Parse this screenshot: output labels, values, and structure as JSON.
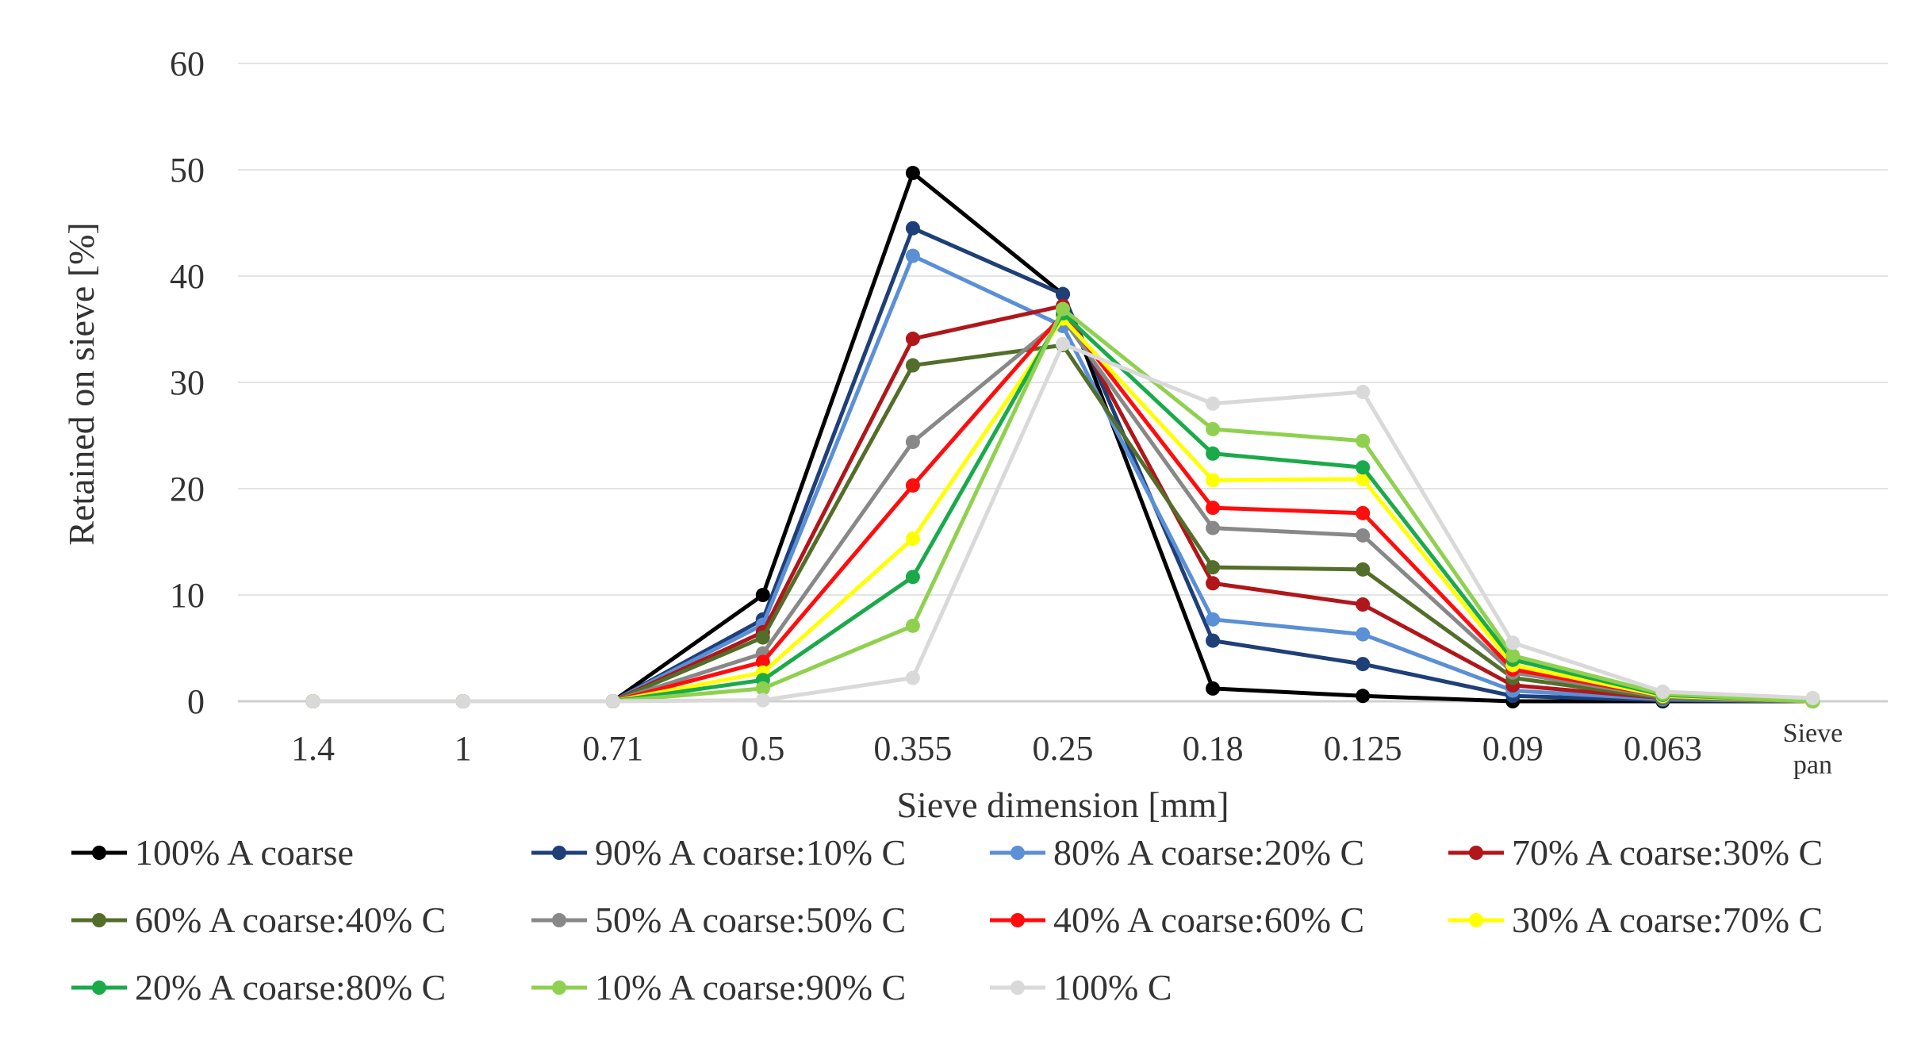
{
  "chart_data": {
    "type": "line",
    "title": "",
    "xlabel": "Sieve dimension [mm]",
    "ylabel": "Retained on sieve [%]",
    "ylim": [
      0,
      60
    ],
    "yticks": [
      0,
      10,
      20,
      30,
      40,
      50,
      60
    ],
    "grid": "horizontal",
    "legend_position": "bottom",
    "categories": [
      "1.4",
      "1",
      "0.71",
      "0.5",
      "0.355",
      "0.25",
      "0.18",
      "0.125",
      "0.09",
      "0.063",
      "Sieve pan"
    ],
    "series": [
      {
        "name": "100% A coarse",
        "color": "#000000",
        "values": [
          0,
          0,
          0,
          10,
          49.7,
          38.3,
          1.2,
          0.5,
          0,
          0,
          0
        ]
      },
      {
        "name": "90% A coarse:10% C",
        "color": "#1f3f79",
        "values": [
          0,
          0,
          0,
          7.7,
          44.5,
          38.3,
          5.7,
          3.5,
          0.5,
          0.1,
          0
        ]
      },
      {
        "name": "80% A coarse:20% C",
        "color": "#5b8fd6",
        "values": [
          0,
          0,
          0,
          7.2,
          41.9,
          35.3,
          7.7,
          6.3,
          1.0,
          0.2,
          0
        ]
      },
      {
        "name": "70% A coarse:30% C",
        "color": "#b0161a",
        "values": [
          0,
          0,
          0,
          6.5,
          34.1,
          37.2,
          11.1,
          9.1,
          1.5,
          0.3,
          0
        ]
      },
      {
        "name": "60% A coarse:40% C",
        "color": "#536e2a",
        "values": [
          0,
          0,
          0,
          6.0,
          31.6,
          33.5,
          12.6,
          12.4,
          2.2,
          0.3,
          0
        ]
      },
      {
        "name": "50% A coarse:50% C",
        "color": "#888888",
        "values": [
          0,
          0,
          0,
          4.5,
          24.4,
          36.0,
          16.3,
          15.6,
          2.7,
          0.4,
          0
        ]
      },
      {
        "name": "40% A coarse:60% C",
        "color": "#ff0d0d",
        "values": [
          0,
          0,
          0,
          3.7,
          20.3,
          36.4,
          18.2,
          17.7,
          3.0,
          0.5,
          0
        ]
      },
      {
        "name": "30% A coarse:70% C",
        "color": "#ffff00",
        "values": [
          0,
          0,
          0,
          2.7,
          15.3,
          36.0,
          20.8,
          20.9,
          3.4,
          0.5,
          0
        ]
      },
      {
        "name": "20% A coarse:80% C",
        "color": "#1aaa4a",
        "values": [
          0,
          0,
          0,
          2.0,
          11.7,
          36.5,
          23.3,
          22.0,
          3.9,
          0.6,
          0
        ]
      },
      {
        "name": "10% A coarse:90% C",
        "color": "#8fd14f",
        "values": [
          0,
          0,
          0,
          1.2,
          7.1,
          36.9,
          25.6,
          24.5,
          4.3,
          0.7,
          0
        ]
      },
      {
        "name": "100% C",
        "color": "#d9d9d9",
        "values": [
          0,
          0,
          0,
          0.1,
          2.2,
          33.6,
          28.0,
          29.1,
          5.5,
          0.9,
          0.3
        ]
      }
    ]
  }
}
